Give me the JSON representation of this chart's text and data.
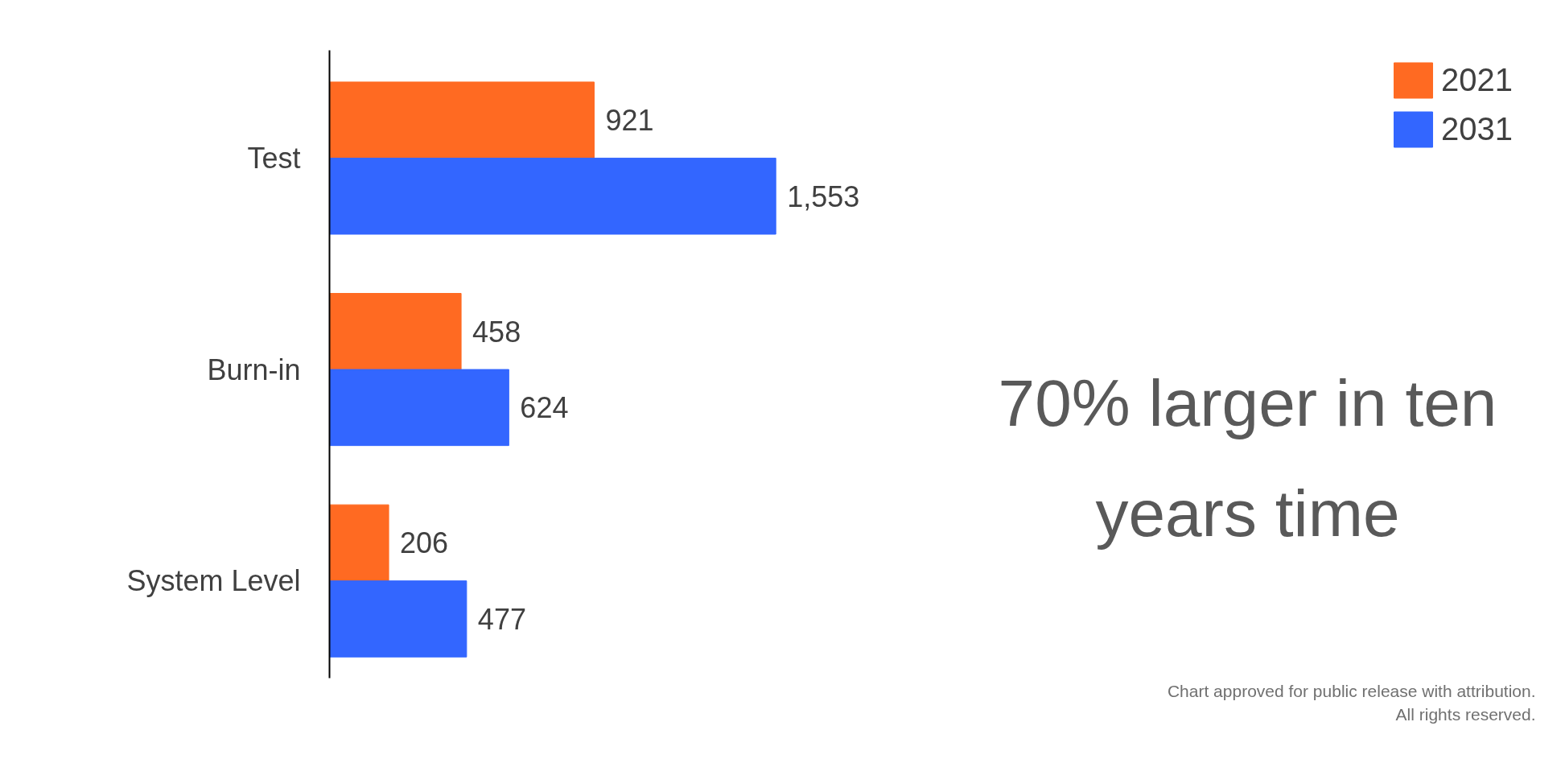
{
  "chart_data": {
    "type": "bar",
    "orientation": "horizontal",
    "categories": [
      "Test",
      "Burn-in",
      "System Level"
    ],
    "series": [
      {
        "name": "2021",
        "color": "#ff6a22",
        "values": [
          921,
          458,
          206
        ],
        "value_labels": [
          "921",
          "458",
          "206"
        ]
      },
      {
        "name": "2031",
        "color": "#3366ff",
        "values": [
          1553,
          624,
          477
        ],
        "value_labels": [
          "1,553",
          "624",
          "477"
        ]
      }
    ],
    "data_labels": true,
    "legend": "top right",
    "grid": false,
    "annotations": [
      "70% larger in ten years time",
      "Chart approved for public release with attribution.",
      "All rights reserved."
    ]
  }
}
